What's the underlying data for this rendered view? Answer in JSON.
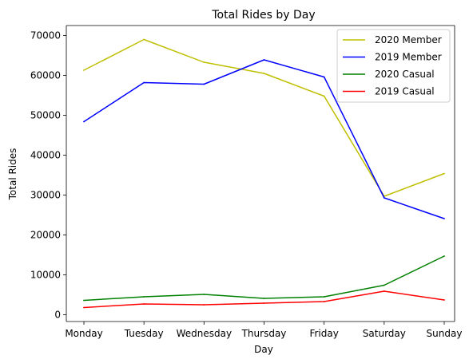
{
  "chart_data": {
    "type": "line",
    "title": "Total Rides by Day",
    "xlabel": "Day",
    "ylabel": "Total Rides",
    "categories": [
      "Monday",
      "Tuesday",
      "Wednesday",
      "Thursday",
      "Friday",
      "Saturday",
      "Sunday"
    ],
    "ylim": [
      -1700,
      72500
    ],
    "yticks": [
      0,
      10000,
      20000,
      30000,
      40000,
      50000,
      60000,
      70000
    ],
    "ytick_labels": [
      "0",
      "10000",
      "20000",
      "30000",
      "40000",
      "50000",
      "60000",
      "70000"
    ],
    "grid": false,
    "legend_position": "top-right",
    "series": [
      {
        "name": "2020 Member",
        "color": "#bfbf00",
        "values": [
          61300,
          69000,
          63300,
          60500,
          54800,
          29700,
          35400
        ]
      },
      {
        "name": "2019 Member",
        "color": "#0000ff",
        "values": [
          48400,
          58200,
          57800,
          63900,
          59600,
          29300,
          24100
        ]
      },
      {
        "name": "2020 Casual",
        "color": "#008000",
        "values": [
          3600,
          4500,
          5100,
          4100,
          4500,
          7400,
          14700
        ]
      },
      {
        "name": "2019 Casual",
        "color": "#ff0000",
        "values": [
          1800,
          2700,
          2500,
          2900,
          3300,
          5900,
          3700
        ]
      }
    ]
  }
}
